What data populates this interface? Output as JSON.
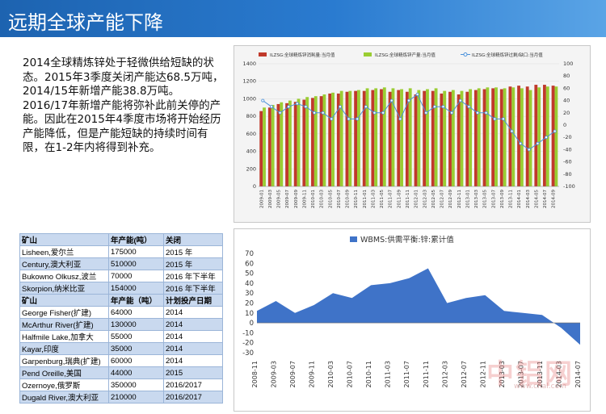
{
  "slide": {
    "title": "远期全球产能下降",
    "paragraph": "2014全球精炼锌处于轻微供给短缺的状态。2015年3季度关闭产能达68.5万吨，2014/15年新增产能38.8万吨。2016/17年新增产能将弥补此前关停的产能。因此在2015年4季度市场将开始经历产能降低，但是产能短缺的持续时间有限，在1-2年内将得到补充。",
    "watermark": "中铝网",
    "watermark_url": "www.cnal.com"
  },
  "table": {
    "header1": [
      "矿山",
      "年产能(吨）",
      "关闭"
    ],
    "closures": [
      [
        "Lisheen,爱尔兰",
        "175000",
        "2015 年"
      ],
      [
        "Century,澳大利亚",
        "510000",
        "2015 年"
      ],
      [
        "Bukowno Olkusz,波兰",
        "70000",
        "2016 年下半年"
      ],
      [
        "Skorpion,纳米比亚",
        "154000",
        "2016 年下半年"
      ]
    ],
    "header2": [
      "矿山",
      "年产能（吨）",
      "计划投产日期"
    ],
    "newmines": [
      [
        "George Fisher(扩建)",
        "64000",
        "2014"
      ],
      [
        "McArthur River(扩建)",
        "130000",
        "2014"
      ],
      [
        "Halfmile Lake,加拿大",
        "55000",
        "2014"
      ],
      [
        "Kayar,印度",
        "35000",
        "2014"
      ],
      [
        "Garpenburg,瑞典(扩建)",
        "60000",
        "2014"
      ],
      [
        "Pend Oreille,美国",
        "44000",
        "2015"
      ],
      [
        "Ozernoye,俄罗斯",
        "350000",
        "2016/2017"
      ],
      [
        "Dugald River,澳大利亚",
        "210000",
        "2016/2017"
      ]
    ]
  },
  "chart_data": [
    {
      "type": "bar",
      "legend": [
        "ILZSG:全球精炼锌消耗量:当月值",
        "ILZSG:全球精炼锌产量:当月值",
        "ILZSG:全球精炼锌过剩/缺口:当月值"
      ],
      "colors": {
        "consumption": "#c0392b",
        "production": "#9acd32",
        "balance": "#4a90d9"
      },
      "x": [
        "2009-01",
        "2009-03",
        "2009-05",
        "2009-07",
        "2009-09",
        "2009-11",
        "2010-01",
        "2010-03",
        "2010-05",
        "2010-07",
        "2010-09",
        "2010-11",
        "2011-01",
        "2011-03",
        "2011-05",
        "2011-07",
        "2011-09",
        "2011-11",
        "2012-01",
        "2012-03",
        "2012-05",
        "2012-07",
        "2012-09",
        "2012-11",
        "2013-01",
        "2013-03",
        "2013-05",
        "2013-07",
        "2013-09",
        "2013-11",
        "2014-01",
        "2014-03",
        "2014-05",
        "2014-07",
        "2014-09"
      ],
      "consumption": [
        860,
        900,
        940,
        950,
        965,
        990,
        1010,
        1030,
        1060,
        1060,
        1080,
        1090,
        1090,
        1100,
        1110,
        1080,
        1100,
        1080,
        1050,
        1090,
        1090,
        1060,
        1080,
        1050,
        1080,
        1100,
        1110,
        1120,
        1110,
        1140,
        1150,
        1140,
        1160,
        1160,
        1150
      ],
      "production": [
        900,
        930,
        960,
        980,
        1000,
        1020,
        1030,
        1050,
        1070,
        1090,
        1090,
        1100,
        1120,
        1120,
        1130,
        1120,
        1110,
        1120,
        1100,
        1110,
        1120,
        1090,
        1100,
        1090,
        1110,
        1120,
        1130,
        1130,
        1120,
        1130,
        1120,
        1100,
        1130,
        1140,
        1140
      ],
      "balance": [
        40,
        30,
        20,
        30,
        35,
        30,
        20,
        20,
        10,
        30,
        10,
        10,
        30,
        20,
        20,
        40,
        10,
        40,
        50,
        20,
        30,
        30,
        20,
        40,
        30,
        20,
        20,
        10,
        10,
        -10,
        -30,
        -40,
        -30,
        -20,
        -10
      ],
      "y_left": [
        0,
        1400
      ],
      "y_right": [
        -100,
        100
      ],
      "y_left_ticks": [
        "0",
        "200",
        "400",
        "600",
        "800",
        "1000",
        "1200",
        "1400"
      ],
      "y_right_ticks": [
        "-100",
        "-80",
        "-60",
        "-40",
        "-20",
        "0",
        "20",
        "40",
        "60",
        "80",
        "100"
      ]
    },
    {
      "type": "area",
      "legend": "WBMS:供需平衡:锌:累计值",
      "color": "#3f73c8",
      "x": [
        "2008-11",
        "2009-03",
        "2009-07",
        "2009-11",
        "2010-03",
        "2010-07",
        "2010-11",
        "2011-03",
        "2011-07",
        "2011-11",
        "2012-03",
        "2012-07",
        "2012-11",
        "2013-03",
        "2013-07",
        "2013-11",
        "2014-03",
        "2014-07"
      ],
      "values": [
        12,
        22,
        10,
        18,
        30,
        25,
        38,
        40,
        45,
        55,
        20,
        25,
        28,
        12,
        10,
        8,
        -5,
        -22
      ],
      "y_range": [
        -30,
        70
      ],
      "y_ticks": [
        "-30",
        "-20",
        "-10",
        "0",
        "10",
        "20",
        "30",
        "40",
        "50",
        "60",
        "70"
      ]
    }
  ]
}
